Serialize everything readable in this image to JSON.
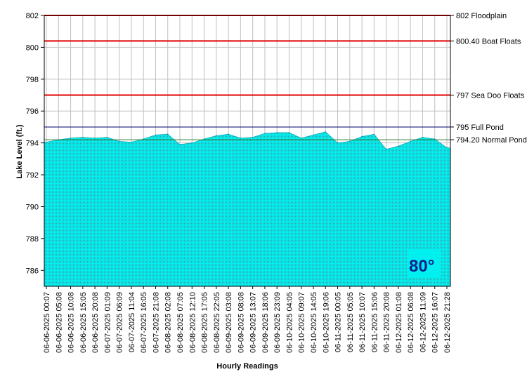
{
  "chart_data": {
    "type": "area",
    "xlabel": "Hourly Readings",
    "ylabel": "Lake Level (ft.)",
    "ylim": [
      785,
      802
    ],
    "y_ticks": [
      786,
      788,
      790,
      792,
      794,
      796,
      798,
      800,
      802
    ],
    "grid": true,
    "x_tick_labels": [
      "06-06-2025 00:07",
      "06-06-2025 05:08",
      "06-06-2025 10:08",
      "06-06-2025 15:05",
      "06-06-2025 20:08",
      "06-07-2025 01:09",
      "06-07-2025 06:09",
      "06-07-2025 11:04",
      "06-07-2025 16:05",
      "06-07-2025 21:08",
      "06-08-2025 02:08",
      "06-08-2025 07:05",
      "06-08-2025 12:10",
      "06-08-2025 17:05",
      "06-08-2025 22:05",
      "06-09-2025 03:08",
      "06-09-2025 08:08",
      "06-09-2025 13:07",
      "06-09-2025 18:06",
      "06-09-2025 23:09",
      "06-10-2025 04:05",
      "06-10-2025 09:07",
      "06-10-2025 14:05",
      "06-10-2025 19:06",
      "06-11-2025 00:05",
      "06-11-2025 05:05",
      "06-11-2025 10:07",
      "06-11-2025 15:06",
      "06-11-2025 20:08",
      "06-12-2025 01:08",
      "06-12-2025 06:08",
      "06-12-2025 11:09",
      "06-12-2025 16:07",
      "06-12-2025 21:28"
    ],
    "series": [
      {
        "values": [
          794.05,
          794.2,
          794.3,
          794.35,
          794.3,
          794.35,
          794.1,
          794.05,
          794.25,
          794.5,
          794.55,
          793.9,
          794.0,
          794.25,
          794.45,
          794.55,
          794.3,
          794.35,
          794.6,
          794.65,
          794.65,
          794.3,
          794.5,
          794.7,
          794.0,
          794.1,
          794.4,
          794.55,
          793.6,
          793.8,
          794.1,
          794.35,
          794.25,
          793.7
        ],
        "color": "#00f0f0"
      }
    ],
    "reference_lines": [
      {
        "value": 802,
        "label": "802 Floodplain",
        "color": "#e00000"
      },
      {
        "value": 800.4,
        "label": "800.40 Boat Floats",
        "color": "#e00000"
      },
      {
        "value": 797,
        "label": "797 Sea Doo Floats",
        "color": "#e00000"
      },
      {
        "value": 795,
        "label": "795 Full Pond",
        "color": "#00006e"
      },
      {
        "value": 794.2,
        "label": "794.20 Normal Pond",
        "color": "#2e7d32"
      }
    ],
    "temperature": "80°"
  }
}
